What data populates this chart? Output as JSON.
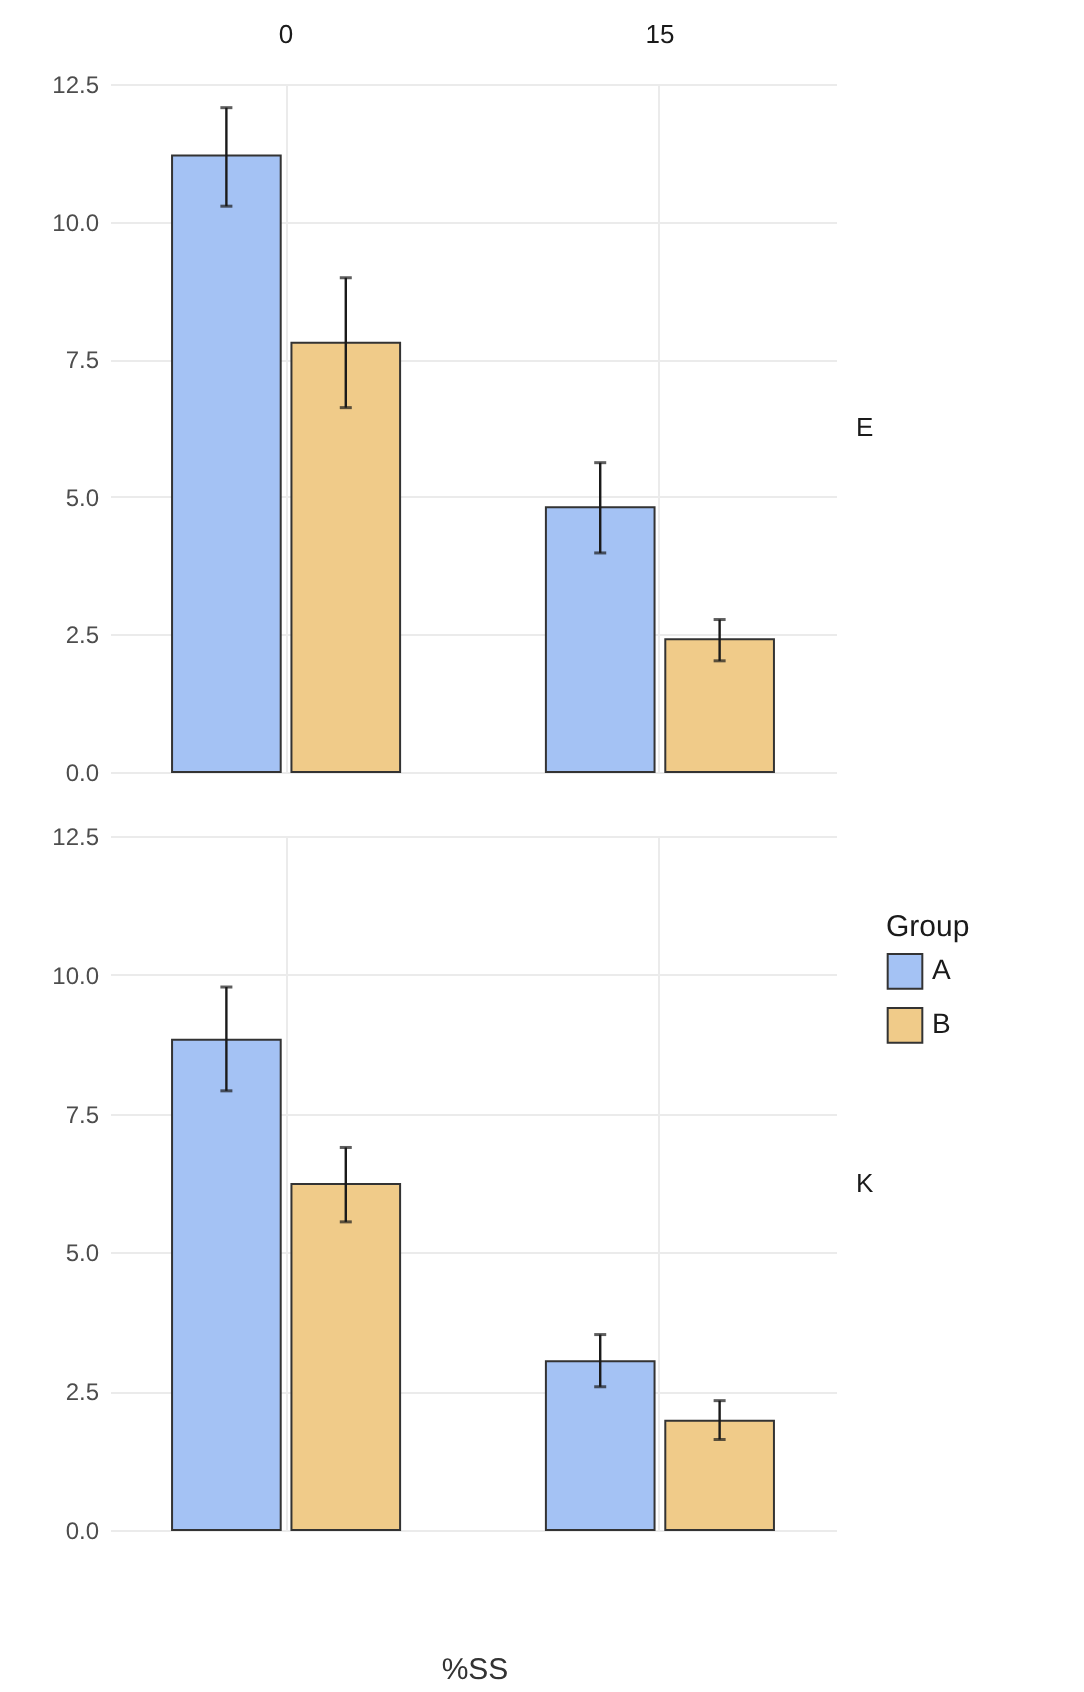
{
  "chart_data": [
    {
      "type": "bar",
      "y2label": "E",
      "categories": [
        "0",
        "15"
      ],
      "series": [
        {
          "color": "#a4c2f4",
          "values": [
            11.2,
            4.81
          ],
          "errors": [
            [
              10.28,
              12.07
            ],
            [
              3.98,
              5.62
            ]
          ]
        },
        {
          "color": "#f0cb89",
          "values": [
            7.8,
            2.41
          ],
          "errors": [
            [
              6.62,
              8.98
            ],
            [
              2.02,
              2.77
            ]
          ]
        }
      ],
      "ylim": [
        0,
        12.5
      ],
      "yticks": [
        {
          "value": 0,
          "label": "0.0"
        },
        {
          "value": 2.5,
          "label": "2.5"
        },
        {
          "value": 5,
          "label": "5.0"
        },
        {
          "value": 7.5,
          "label": "7.5"
        },
        {
          "value": 10,
          "label": "10.0"
        },
        {
          "value": 12.5,
          "label": "12.5"
        }
      ],
      "grid": true
    },
    {
      "type": "bar",
      "xlabel": "%SS",
      "y2label": "K",
      "legend_title": "Group",
      "legend": "right",
      "categories": [
        "0",
        "15"
      ],
      "series": [
        {
          "name": "A",
          "color": "#a4c2f4",
          "values": [
            8.83,
            3.04
          ],
          "errors": [
            [
              7.91,
              9.78
            ],
            [
              2.58,
              3.52
            ]
          ]
        },
        {
          "name": "B",
          "color": "#f0cb89",
          "values": [
            6.23,
            1.97
          ],
          "errors": [
            [
              5.55,
              6.89
            ],
            [
              1.63,
              2.33
            ]
          ]
        }
      ],
      "ylim": [
        0,
        12.5
      ],
      "yticks": [
        {
          "value": 0,
          "label": "0.0"
        },
        {
          "value": 2.5,
          "label": "2.5"
        },
        {
          "value": 5,
          "label": "5.0"
        },
        {
          "value": 7.5,
          "label": "7.5"
        },
        {
          "value": 10,
          "label": "10.0"
        },
        {
          "value": 12.5,
          "label": "12.5"
        }
      ],
      "grid": true,
      "tick_labels": "y"
    }
  ]
}
